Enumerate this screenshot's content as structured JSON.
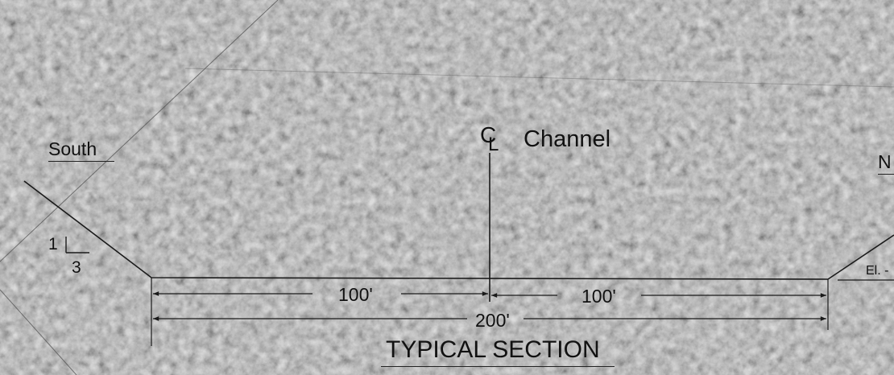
{
  "labels": {
    "south": "South",
    "north_partial": "N",
    "centerline_symbol_c": "C",
    "centerline_symbol_l": "L",
    "channel": "Channel",
    "slope_rise": "1",
    "slope_run": "3",
    "elevation_partial": "El. -",
    "dim_left": "100'",
    "dim_right": "100'",
    "dim_total": "200'",
    "section_title": "TYPICAL SECTION"
  },
  "colors": {
    "background": "#8f8f8f",
    "linework": "#1a1a1a"
  }
}
